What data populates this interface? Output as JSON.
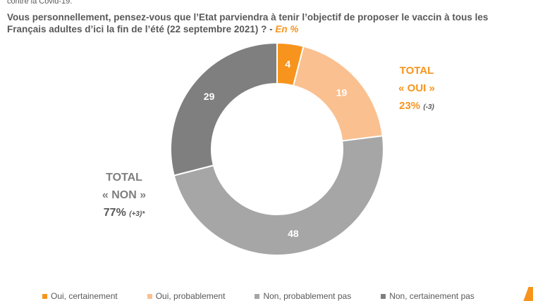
{
  "header": {
    "top_text": "contre la Covid-19.",
    "question": "Vous personnellement, pensez-vous que l’Etat parviendra à tenir l’objectif de proposer le vaccin à tous les Français adultes d’ici la fin de l’été (22 septembre 2021) ? -",
    "unit": "En %"
  },
  "chart_data": {
    "type": "pie",
    "categories": [
      "Oui, certainement",
      "Oui, probablement",
      "Non, probablement pas",
      "Non, certainement pas"
    ],
    "values": [
      4,
      19,
      48,
      29
    ],
    "colors": [
      "#f7941d",
      "#fac090",
      "#a6a6a6",
      "#7f7f7f"
    ],
    "label_colors": [
      "#ffffff",
      "#ffffff",
      "#ffffff",
      "#ffffff"
    ],
    "donut": true,
    "title": "",
    "legend_position": "bottom"
  },
  "totals": {
    "oui": {
      "line1": "TOTAL",
      "line2": "« OUI »",
      "pct": "23%",
      "delta": "(-3)"
    },
    "non": {
      "line1": "TOTAL",
      "line2": "« NON »",
      "pct": "77%",
      "delta": "(+3)*"
    }
  }
}
